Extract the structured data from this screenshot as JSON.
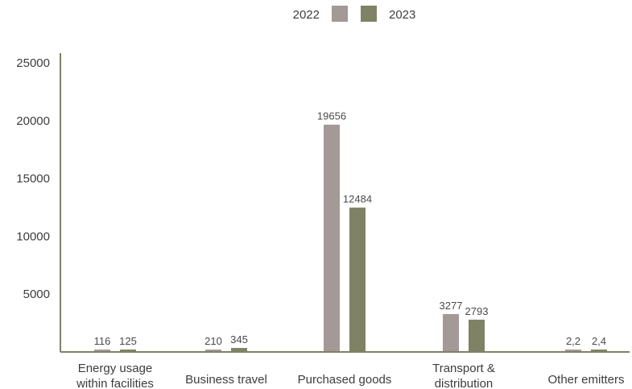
{
  "chart_data": {
    "type": "bar",
    "categories": [
      "Energy usage within facilities",
      "Business travel",
      "Purchased goods",
      "Transport & distribution",
      "Other emitters"
    ],
    "category_label_lines": [
      [
        "Energy usage",
        "within facilities"
      ],
      [
        "Business travel"
      ],
      [
        "Purchased goods"
      ],
      [
        "Transport &",
        "distribution"
      ],
      [
        "Other emitters"
      ]
    ],
    "series": [
      {
        "name": "2022",
        "color": "#a39997",
        "values": [
          116,
          210,
          19656,
          3277,
          2.2
        ],
        "labels": [
          "116",
          "210",
          "19656",
          "3277",
          "2,2"
        ]
      },
      {
        "name": "2023",
        "color": "#7f8264",
        "values": [
          125,
          345,
          12484,
          2793,
          2.4
        ],
        "labels": [
          "125",
          "345",
          "12484",
          "2793",
          "2,4"
        ]
      }
    ],
    "y_ticks": [
      5000,
      10000,
      15000,
      20000,
      25000
    ],
    "ylim": [
      0,
      25000
    ],
    "title": "",
    "xlabel": "",
    "ylabel": "",
    "legend_position": "top-center",
    "grid": false,
    "axis_color": "#7f8264"
  }
}
